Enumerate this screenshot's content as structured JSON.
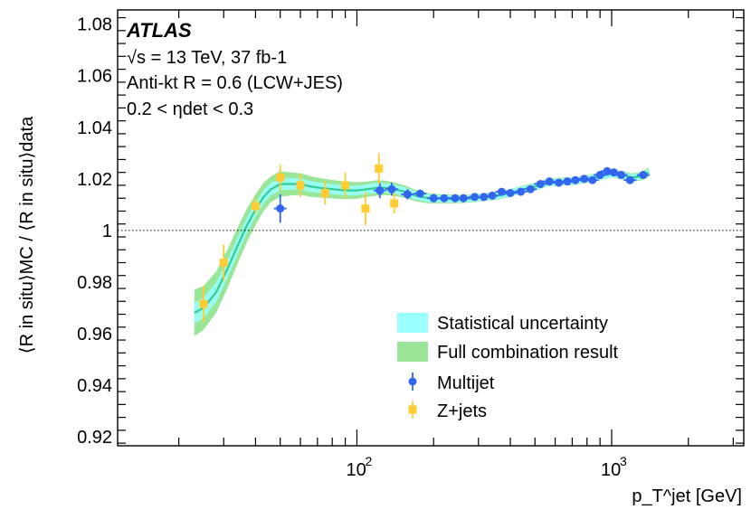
{
  "chart_data": {
    "type": "scatter",
    "title": "",
    "experiment": "ATLAS",
    "annotations": [
      "√s = 13 TeV, 37 fb-1",
      "Anti-kt R = 0.6 (LCW+JES)",
      "0.2 < ηdet < 0.3"
    ],
    "xlabel": "p_T^jet [GeV]",
    "ylabel": "⟨R in situ⟩MC / ⟨R in situ⟩data",
    "x_scale": "log",
    "xlim": [
      11.5,
      3300
    ],
    "ylim": [
      0.9165,
      1.0855
    ],
    "x_ticks": [
      {
        "value": 100,
        "label": "10",
        "exp": "2"
      },
      {
        "value": 1000,
        "label": "10",
        "exp": "3"
      }
    ],
    "y_ticks": [
      "0.92",
      "0.94",
      "0.96",
      "0.98",
      "1",
      "1.02",
      "1.04",
      "1.06",
      "1.08"
    ],
    "reference_line": 1.0,
    "grid": false,
    "legend_position": "bottom-right",
    "legend": {
      "stat": "Statistical uncertainty",
      "full": "Full combination result",
      "multijet": "Multijet",
      "zjets": "Z+jets"
    },
    "colors": {
      "stat": "#99ffff",
      "full": "#99e699",
      "combination_line": "#33cc99",
      "multijet": "#3366ee",
      "zjets": "#ffcc33"
    },
    "combination": {
      "x": [
        23,
        25,
        28,
        31,
        34,
        37,
        40,
        43,
        46,
        50,
        55,
        60,
        66,
        72,
        80,
        90,
        100,
        110,
        120,
        130,
        140,
        155,
        170,
        190,
        210,
        235,
        260,
        290,
        320,
        360,
        400,
        450,
        500,
        560,
        630,
        710,
        800,
        900,
        1000,
        1100,
        1200,
        1300,
        1400
      ],
      "y": [
        0.968,
        0.97,
        0.976,
        0.985,
        0.994,
        1.002,
        1.008,
        1.013,
        1.016,
        1.018,
        1.018,
        1.018,
        1.017,
        1.0165,
        1.016,
        1.0155,
        1.0155,
        1.016,
        1.0165,
        1.0165,
        1.016,
        1.015,
        1.0135,
        1.0125,
        1.0123,
        1.0122,
        1.0122,
        1.0125,
        1.013,
        1.0135,
        1.0145,
        1.016,
        1.017,
        1.0185,
        1.019,
        1.019,
        1.02,
        1.021,
        1.022,
        1.0215,
        1.0205,
        1.021,
        1.0225
      ],
      "stat_halfwidth": [
        0.004,
        0.004,
        0.0038,
        0.0035,
        0.0033,
        0.003,
        0.0028,
        0.0026,
        0.0025,
        0.0024,
        0.0023,
        0.0022,
        0.0021,
        0.002,
        0.002,
        0.0019,
        0.0019,
        0.0019,
        0.0019,
        0.0018,
        0.0018,
        0.0017,
        0.0016,
        0.0015,
        0.0014,
        0.0014,
        0.0013,
        0.0013,
        0.0013,
        0.0013,
        0.0013,
        0.0013,
        0.0013,
        0.0013,
        0.0013,
        0.0013,
        0.0013,
        0.0013,
        0.0013,
        0.0013,
        0.0013,
        0.0013,
        0.0013
      ],
      "full_halfwidth": [
        0.009,
        0.0085,
        0.008,
        0.0075,
        0.007,
        0.0065,
        0.006,
        0.0055,
        0.005,
        0.005,
        0.0045,
        0.0042,
        0.004,
        0.0038,
        0.0036,
        0.0034,
        0.0032,
        0.003,
        0.003,
        0.0028,
        0.0026,
        0.0024,
        0.0022,
        0.002,
        0.0018,
        0.0017,
        0.0016,
        0.0015,
        0.0015,
        0.0015,
        0.0015,
        0.0015,
        0.0015,
        0.0015,
        0.0015,
        0.0015,
        0.0015,
        0.0015,
        0.0015,
        0.0016,
        0.0016,
        0.0017,
        0.0018
      ]
    },
    "series": [
      {
        "name": "Multijet",
        "marker": "circle",
        "x": [
          50,
          123,
          137,
          158,
          177,
          200,
          220,
          243,
          262,
          290,
          315,
          340,
          370,
          400,
          440,
          480,
          525,
          570,
          620,
          670,
          720,
          780,
          840,
          900,
          960,
          1020,
          1090,
          1180,
          1330
        ],
        "y": [
          1.0085,
          1.0155,
          1.016,
          1.014,
          1.0143,
          1.0125,
          1.0125,
          1.0125,
          1.0125,
          1.013,
          1.013,
          1.0135,
          1.015,
          1.0145,
          1.015,
          1.016,
          1.018,
          1.019,
          1.0185,
          1.019,
          1.0195,
          1.02,
          1.0195,
          1.0215,
          1.023,
          1.0225,
          1.0215,
          1.0195,
          1.0215
        ],
        "yerr": [
          0.0055,
          0.003,
          0.0025,
          0.002,
          0.0015,
          0.0012,
          0.0012,
          0.0012,
          0.0012,
          0.0012,
          0.0012,
          0.0012,
          0.0012,
          0.0012,
          0.0012,
          0.0012,
          0.0012,
          0.0012,
          0.0012,
          0.0012,
          0.0012,
          0.0012,
          0.0012,
          0.0012,
          0.0012,
          0.0012,
          0.0012,
          0.0012,
          0.0012
        ]
      },
      {
        "name": "Z+jets",
        "marker": "square",
        "x": [
          25,
          30,
          40,
          50,
          60,
          75,
          90,
          108,
          122,
          140
        ],
        "y": [
          0.9715,
          0.9875,
          1.0095,
          1.0205,
          1.0175,
          1.0145,
          1.0175,
          1.0085,
          1.024,
          1.0105
        ],
        "yerr": [
          0.007,
          0.007,
          0.003,
          0.005,
          0.0045,
          0.0045,
          0.005,
          0.0065,
          0.006,
          0.004
        ]
      }
    ]
  }
}
